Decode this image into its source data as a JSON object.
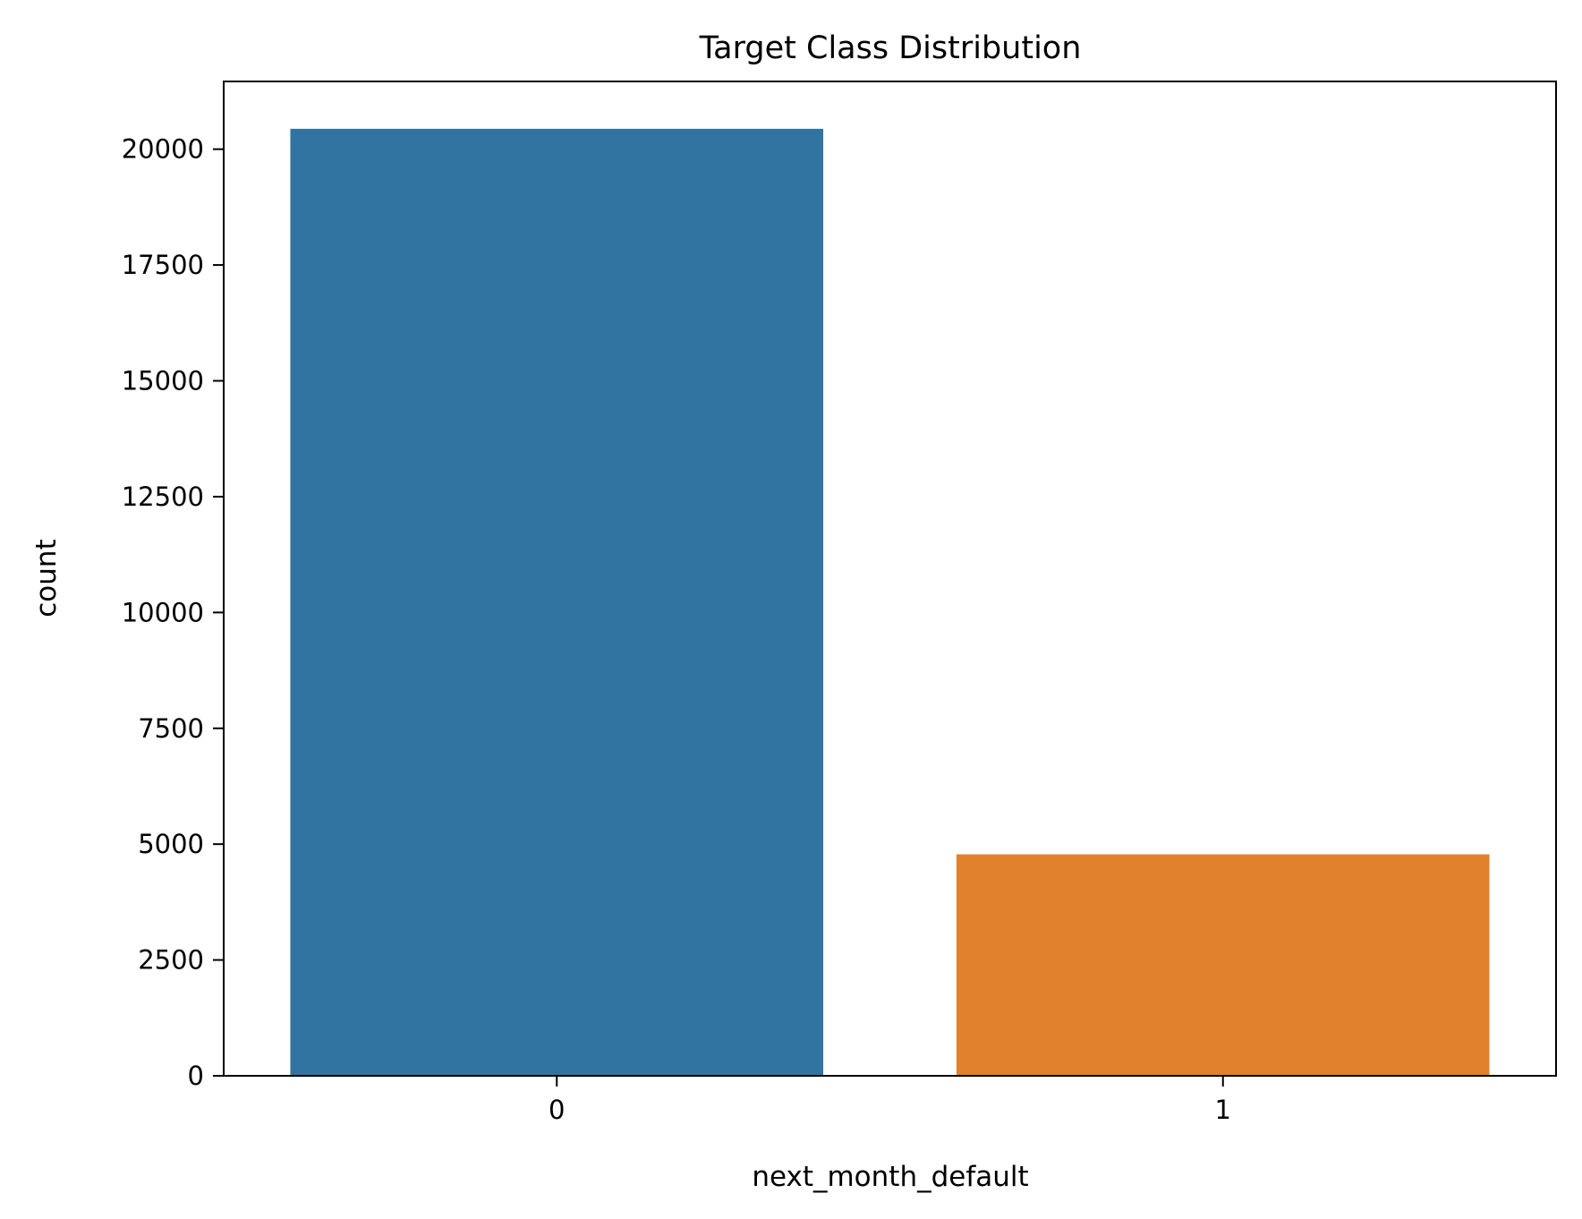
{
  "chart_data": {
    "type": "bar",
    "title": "Target Class Distribution",
    "xlabel": "next_month_default",
    "ylabel": "count",
    "categories": [
      "0",
      "1"
    ],
    "values": [
      20440,
      4780
    ],
    "colors": [
      "#3274a1",
      "#e1812c"
    ],
    "ylim": [
      0,
      21462
    ],
    "yticks": [
      0,
      2500,
      5000,
      7500,
      10000,
      12500,
      15000,
      17500,
      20000
    ],
    "grid": false
  }
}
